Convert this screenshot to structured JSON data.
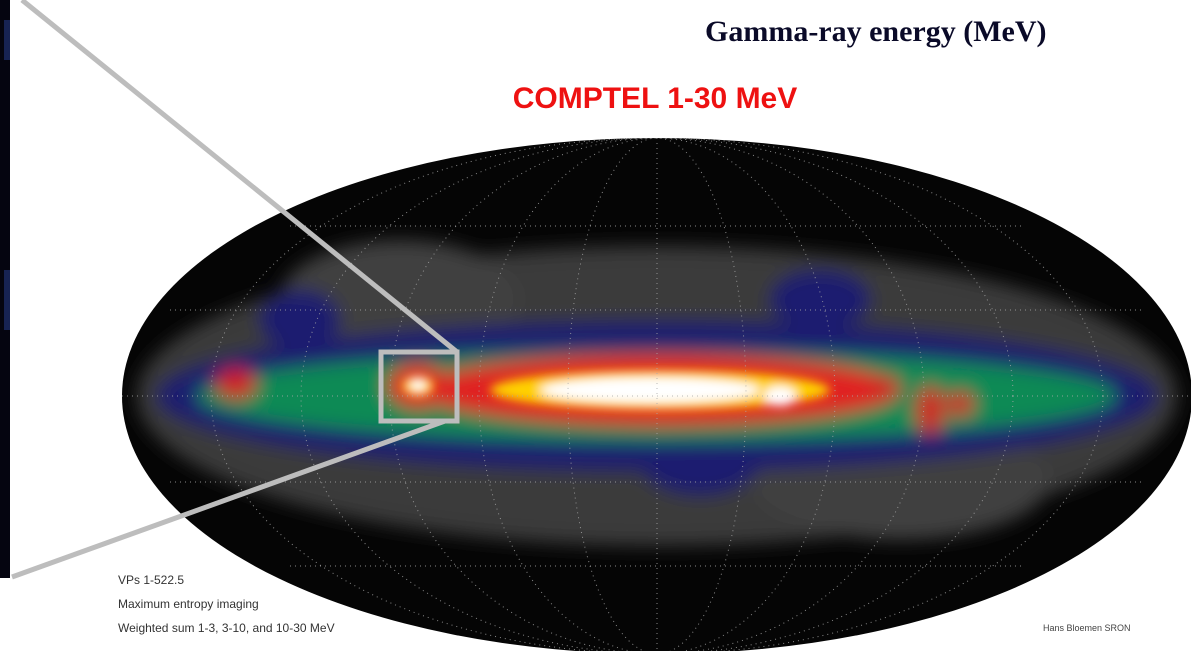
{
  "header": {
    "title": "Gamma-ray energy (MeV)"
  },
  "map": {
    "title": "COMPTEL 1-30 MeV",
    "notes": [
      "VPs 1-522.5",
      "Maximum entropy imaging",
      "Weighted sum 1-3, 3-10, and 10-30 MeV"
    ],
    "credit": "Hans Bloemen SRON"
  }
}
